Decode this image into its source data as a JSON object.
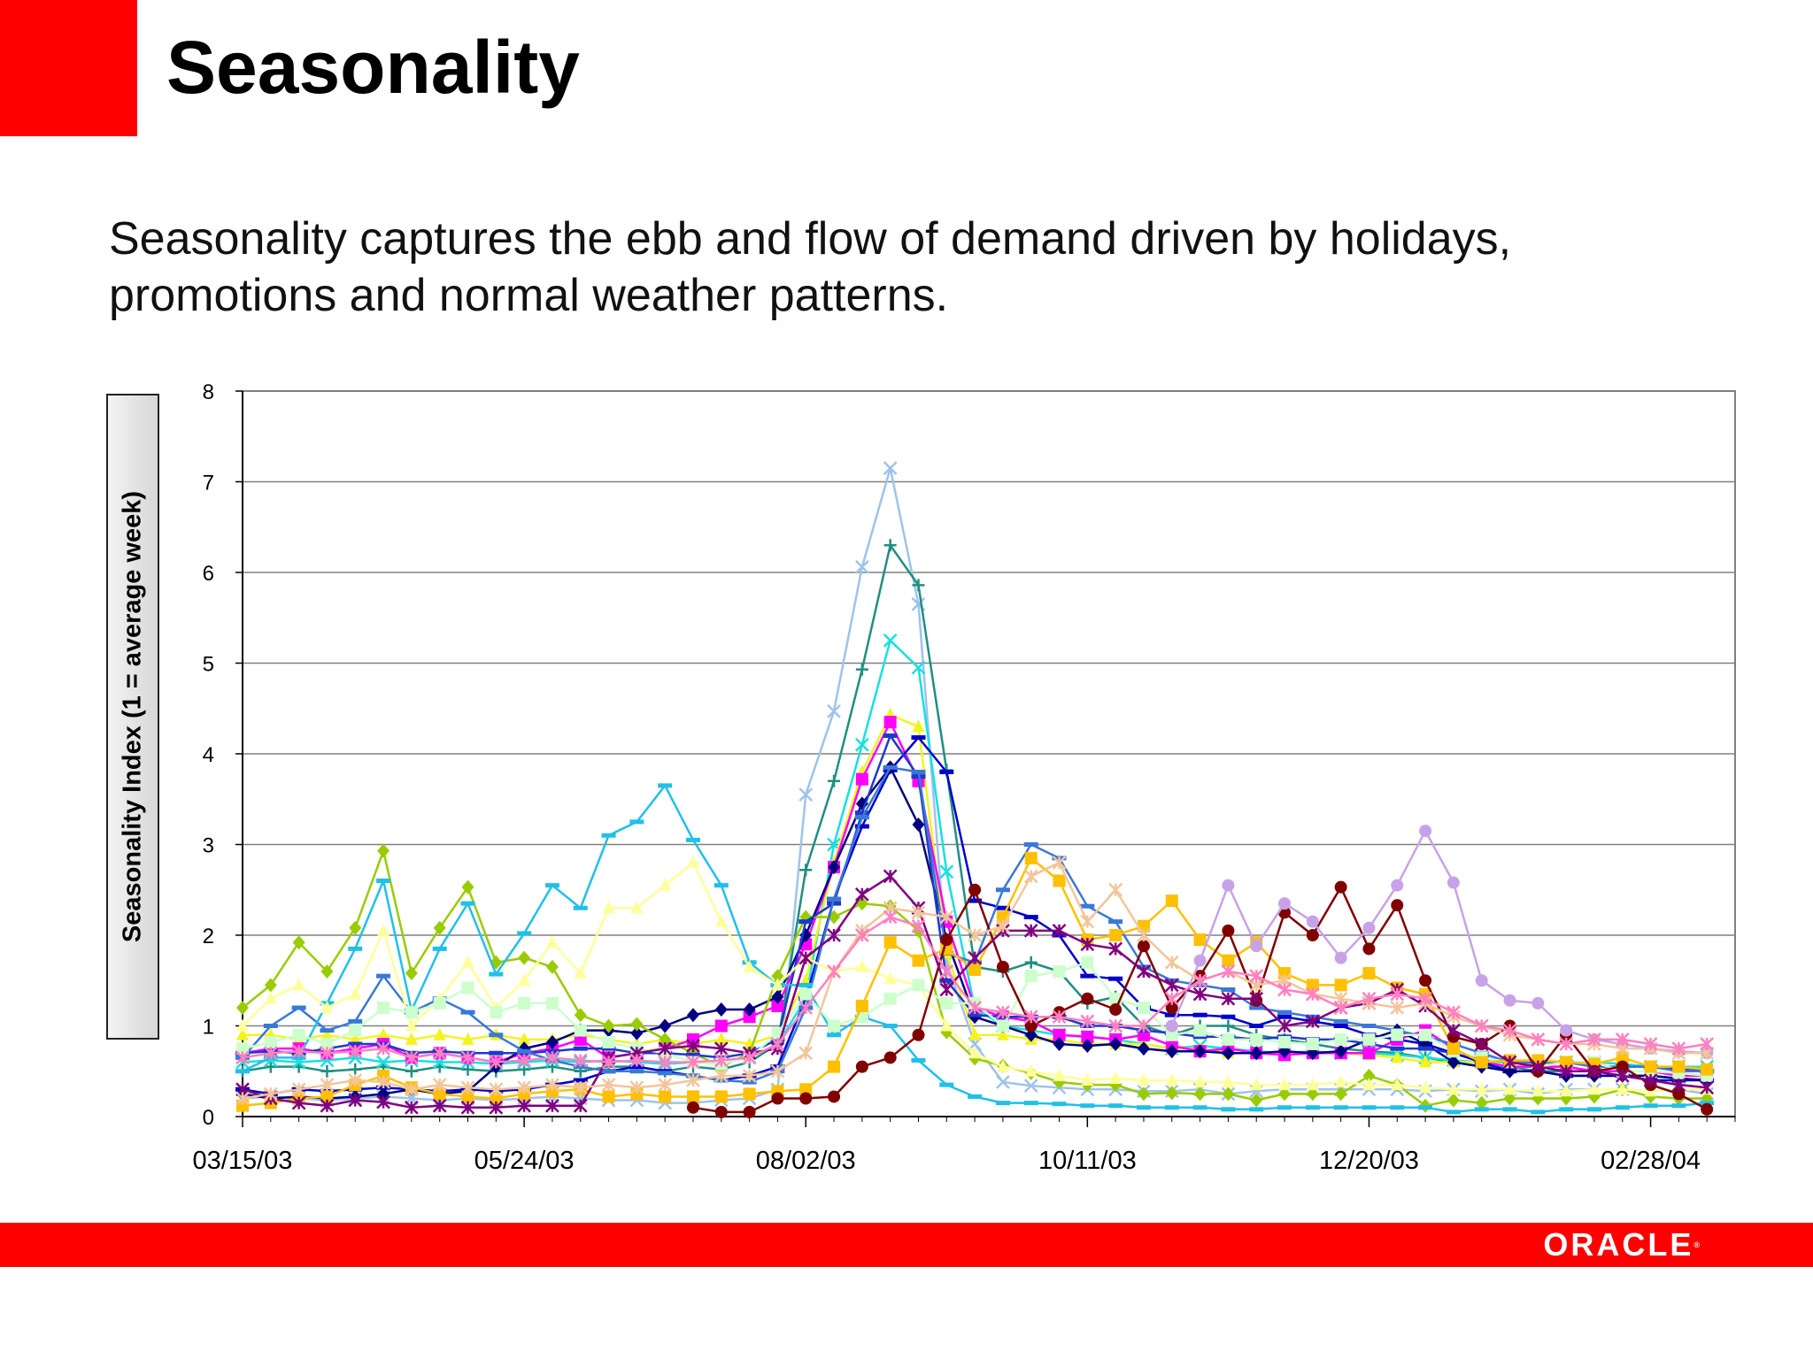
{
  "slide": {
    "title": "Seasonality",
    "subtitle": "Seasonality captures the ebb and flow of demand driven by holidays, promotions and normal weather patterns.",
    "logo_text": "ORACLE"
  },
  "colors": {
    "brand_red": "#ff0000"
  },
  "chart_data": {
    "type": "line",
    "title": "",
    "xlabel": "",
    "ylabel": "Seasonality Index (1 = average week)",
    "ylim": [
      0,
      8
    ],
    "yticks": [
      "0",
      "1",
      "2",
      "3",
      "4",
      "5",
      "6",
      "7",
      "8"
    ],
    "xlim": [
      0,
      53
    ],
    "xtick_labels": [
      "03/15/03",
      "05/24/03",
      "08/02/03",
      "10/11/03",
      "12/20/03",
      "02/28/04"
    ],
    "xtick_positions": [
      0,
      10,
      20,
      30,
      40,
      50
    ],
    "grid": "horizontal",
    "legend": "none",
    "series": [
      {
        "color": "#9fc3ea",
        "marker": "x",
        "values": [
          0.2,
          0.22,
          0.2,
          0.18,
          0.2,
          0.22,
          0.2,
          0.18,
          0.2,
          0.18,
          0.2,
          0.22,
          0.2,
          0.18,
          0.18,
          0.15,
          0.15,
          0.18,
          0.2,
          0.3,
          3.55,
          4.47,
          6.06,
          7.15,
          5.65,
          1.7,
          0.8,
          0.38,
          0.34,
          0.32,
          0.3,
          0.3,
          0.28,
          0.28,
          0.3,
          0.25,
          0.28,
          0.3,
          0.3,
          0.3,
          0.3,
          0.3,
          0.28,
          0.3,
          0.28,
          0.3,
          0.25,
          0.3,
          0.3,
          0.3,
          0.28,
          0.3,
          0.25
        ]
      },
      {
        "color": "#1f8f80",
        "marker": "plus",
        "values": [
          0.5,
          0.55,
          0.55,
          0.5,
          0.52,
          0.55,
          0.5,
          0.55,
          0.52,
          0.5,
          0.52,
          0.55,
          0.5,
          0.55,
          0.55,
          0.5,
          0.55,
          0.52,
          0.6,
          0.8,
          2.72,
          3.7,
          4.93,
          6.3,
          5.86,
          3.82,
          1.65,
          1.6,
          1.7,
          1.6,
          1.25,
          1.32,
          1.0,
          0.9,
          1.0,
          1.0,
          0.9,
          0.85,
          0.8,
          0.75,
          0.72,
          0.7,
          0.65,
          0.6,
          0.55,
          0.55,
          0.5,
          0.5,
          0.5,
          0.45,
          0.45,
          0.42,
          0.4
        ]
      },
      {
        "color": "#18e0e0",
        "marker": "x",
        "values": [
          0.6,
          0.62,
          0.6,
          0.62,
          0.65,
          0.6,
          0.62,
          0.6,
          0.6,
          0.58,
          0.6,
          0.62,
          0.6,
          0.62,
          0.6,
          0.58,
          0.6,
          0.62,
          0.65,
          0.8,
          1.3,
          3.0,
          4.1,
          5.25,
          4.95,
          2.7,
          1.2,
          1.0,
          0.95,
          0.9,
          0.88,
          0.85,
          0.8,
          0.75,
          0.78,
          0.75,
          0.72,
          0.7,
          0.72,
          0.7,
          0.7,
          0.68,
          0.65,
          0.62,
          0.6,
          0.6,
          0.58,
          0.6,
          0.6,
          0.58,
          0.55,
          0.55,
          0.55
        ]
      },
      {
        "color": "#f3f320",
        "marker": "triangle",
        "values": [
          0.9,
          0.9,
          0.85,
          0.9,
          0.85,
          0.9,
          0.85,
          0.9,
          0.85,
          0.9,
          0.85,
          0.85,
          0.9,
          0.85,
          0.8,
          0.85,
          0.8,
          0.85,
          0.8,
          0.9,
          1.5,
          2.8,
          3.8,
          4.43,
          4.3,
          1.8,
          0.9,
          0.9,
          0.85,
          0.85,
          0.8,
          0.8,
          0.8,
          0.75,
          0.75,
          0.7,
          0.7,
          0.7,
          0.7,
          0.7,
          0.68,
          0.65,
          0.6,
          0.6,
          0.6,
          0.55,
          0.55,
          0.55,
          0.5,
          0.5,
          0.5,
          0.45,
          0.45
        ]
      },
      {
        "color": "#ff00ff",
        "marker": "square",
        "values": [
          0.7,
          0.75,
          0.75,
          0.7,
          0.75,
          0.8,
          0.65,
          0.7,
          0.65,
          0.6,
          0.7,
          0.75,
          0.85,
          0.65,
          0.7,
          0.75,
          0.85,
          1.0,
          1.1,
          1.22,
          1.9,
          2.75,
          3.72,
          4.35,
          3.7,
          2.15,
          1.2,
          1.1,
          1.05,
          0.9,
          0.88,
          0.85,
          0.9,
          0.78,
          0.72,
          0.75,
          0.7,
          0.68,
          0.7,
          0.7,
          0.7,
          0.85,
          0.95,
          0.75,
          0.6,
          0.55,
          0.55,
          0.55,
          0.5,
          0.5,
          0.5,
          0.45,
          0.45
        ]
      },
      {
        "color": "#0000cc",
        "marker": "dash",
        "values": [
          0.3,
          0.25,
          0.3,
          0.28,
          0.3,
          0.32,
          0.3,
          0.28,
          0.3,
          0.28,
          0.3,
          0.35,
          0.4,
          0.5,
          0.55,
          0.5,
          0.45,
          0.4,
          0.45,
          0.55,
          1.3,
          2.4,
          3.2,
          3.82,
          4.18,
          3.8,
          2.38,
          2.3,
          2.2,
          2.0,
          1.55,
          1.52,
          1.2,
          1.12,
          1.12,
          1.1,
          1.0,
          1.1,
          1.05,
          1.0,
          0.9,
          0.85,
          0.8,
          0.7,
          0.6,
          0.5,
          0.5,
          0.45,
          0.45,
          0.45,
          0.4,
          0.4,
          0.4
        ]
      },
      {
        "color": "#000080",
        "marker": "diamond",
        "values": [
          0.25,
          0.2,
          0.22,
          0.2,
          0.22,
          0.25,
          0.3,
          0.25,
          0.28,
          0.55,
          0.75,
          0.82,
          0.95,
          0.95,
          0.92,
          1.0,
          1.12,
          1.18,
          1.18,
          1.32,
          2.0,
          2.75,
          3.45,
          3.85,
          3.22,
          1.95,
          1.1,
          1.0,
          0.9,
          0.8,
          0.78,
          0.8,
          0.75,
          0.72,
          0.72,
          0.7,
          0.7,
          0.72,
          0.7,
          0.72,
          0.85,
          0.95,
          0.8,
          0.6,
          0.55,
          0.5,
          0.5,
          0.45,
          0.45,
          0.45,
          0.45,
          0.42,
          0.4
        ]
      },
      {
        "color": "#99cc00",
        "marker": "diamond",
        "values": [
          1.2,
          1.45,
          1.92,
          1.6,
          2.08,
          2.93,
          1.58,
          2.08,
          2.53,
          1.7,
          1.75,
          1.65,
          1.12,
          1.0,
          1.02,
          0.85,
          0.7,
          0.55,
          0.7,
          1.55,
          2.2,
          2.2,
          2.35,
          2.32,
          2.05,
          0.93,
          0.64,
          0.56,
          0.48,
          0.38,
          0.35,
          0.35,
          0.25,
          0.26,
          0.25,
          0.25,
          0.18,
          0.25,
          0.25,
          0.25,
          0.45,
          0.35,
          0.12,
          0.18,
          0.15,
          0.2,
          0.2,
          0.2,
          0.22,
          0.3,
          0.22,
          0.2,
          0.2
        ]
      },
      {
        "color": "#1e3ac8",
        "marker": "dash",
        "values": [
          0.7,
          0.72,
          0.7,
          0.75,
          0.8,
          0.8,
          0.7,
          0.72,
          0.7,
          0.7,
          0.7,
          0.72,
          0.75,
          0.75,
          0.7,
          0.7,
          0.68,
          0.65,
          0.7,
          0.85,
          2.15,
          2.35,
          3.35,
          4.2,
          3.75,
          1.5,
          1.12,
          1.1,
          1.1,
          1.1,
          1.0,
          1.0,
          0.95,
          0.92,
          0.88,
          0.88,
          0.85,
          0.88,
          0.85,
          0.85,
          0.8,
          0.75,
          0.75,
          0.7,
          0.65,
          0.6,
          0.6,
          0.6,
          0.55,
          0.55,
          0.55,
          0.52,
          0.5
        ]
      },
      {
        "color": "#3a78d8",
        "marker": "dash",
        "values": [
          0.65,
          1.0,
          1.2,
          0.95,
          1.05,
          1.55,
          1.15,
          1.3,
          1.15,
          0.9,
          0.72,
          0.62,
          0.55,
          0.5,
          0.5,
          0.48,
          0.45,
          0.4,
          0.38,
          0.5,
          1.2,
          2.4,
          3.3,
          3.85,
          3.8,
          1.8,
          1.7,
          2.5,
          3.0,
          2.85,
          2.32,
          2.15,
          1.65,
          1.5,
          1.45,
          1.4,
          1.2,
          1.15,
          1.1,
          1.05,
          1.0,
          0.95,
          0.88,
          0.8,
          0.7,
          0.6,
          0.6,
          0.6,
          0.55,
          0.55,
          0.55,
          0.5,
          0.5
        ]
      },
      {
        "color": "#20c0e8",
        "marker": "dash",
        "values": [
          0.5,
          0.65,
          0.65,
          1.25,
          1.85,
          2.6,
          1.17,
          1.85,
          2.35,
          1.57,
          2.02,
          2.55,
          2.3,
          3.1,
          3.25,
          3.65,
          3.05,
          2.55,
          1.7,
          1.45,
          1.45,
          0.9,
          1.1,
          1.0,
          0.62,
          0.35,
          0.22,
          0.15,
          0.15,
          0.14,
          0.12,
          0.12,
          0.1,
          0.1,
          0.1,
          0.08,
          0.08,
          0.1,
          0.1,
          0.1,
          0.1,
          0.1,
          0.1,
          0.05,
          0.08,
          0.08,
          0.05,
          0.08,
          0.08,
          0.1,
          0.12,
          0.12,
          0.15
        ]
      },
      {
        "color": "#ffff99",
        "marker": "triangle",
        "values": [
          1.0,
          1.3,
          1.45,
          1.2,
          1.35,
          2.05,
          1.0,
          1.3,
          1.7,
          1.2,
          1.5,
          1.92,
          1.58,
          2.3,
          2.3,
          2.55,
          2.8,
          2.15,
          1.65,
          1.45,
          1.75,
          1.6,
          1.65,
          1.52,
          1.45,
          1.0,
          0.7,
          0.55,
          0.5,
          0.45,
          0.4,
          0.42,
          0.4,
          0.4,
          0.38,
          0.38,
          0.35,
          0.35,
          0.35,
          0.38,
          0.35,
          0.35,
          0.32,
          0.3,
          0.3,
          0.3,
          0.28,
          0.28,
          0.3,
          0.3,
          0.28,
          0.3,
          0.3
        ]
      },
      {
        "color": "#ccffcc",
        "marker": "square",
        "values": [
          0.75,
          0.82,
          0.9,
          0.8,
          0.95,
          1.2,
          1.15,
          1.25,
          1.42,
          1.15,
          1.25,
          1.25,
          0.95,
          0.82,
          0.75,
          0.7,
          0.6,
          0.58,
          0.65,
          0.92,
          1.35,
          1.0,
          1.1,
          1.3,
          1.45,
          1.25,
          1.25,
          1.0,
          1.55,
          1.6,
          1.7,
          1.3,
          1.2,
          0.9,
          0.95,
          0.85,
          0.85,
          0.82,
          0.8,
          0.85,
          0.85,
          0.9,
          0.9,
          0.72,
          0.65,
          0.6,
          0.55,
          0.6,
          0.6,
          0.5,
          0.5,
          0.48,
          0.45
        ]
      },
      {
        "color": "#ffc000",
        "marker": "square",
        "values": [
          0.12,
          0.15,
          0.2,
          0.22,
          0.35,
          0.45,
          0.32,
          0.25,
          0.22,
          0.2,
          0.25,
          0.28,
          0.3,
          0.22,
          0.25,
          0.22,
          0.22,
          0.22,
          0.25,
          0.28,
          0.3,
          0.55,
          1.22,
          1.92,
          1.72,
          1.85,
          1.62,
          2.2,
          2.85,
          2.6,
          1.95,
          2.0,
          2.1,
          2.38,
          1.95,
          1.72,
          1.92,
          1.58,
          1.45,
          1.45,
          1.58,
          1.42,
          1.35,
          0.75,
          0.6,
          0.62,
          0.62,
          0.6,
          0.58,
          0.65,
          0.55,
          0.55,
          0.52
        ]
      },
      {
        "color": "#800000",
        "marker": "circle",
        "values": [
          null,
          null,
          null,
          null,
          null,
          null,
          null,
          null,
          null,
          null,
          null,
          null,
          null,
          null,
          null,
          null,
          0.1,
          0.05,
          0.05,
          0.2,
          0.2,
          0.22,
          0.55,
          0.65,
          0.9,
          1.95,
          2.5,
          1.65,
          1.0,
          1.15,
          1.3,
          1.18,
          1.88,
          1.2,
          1.55,
          2.05,
          1.28,
          2.25,
          2.0,
          2.53,
          1.85,
          2.33,
          1.5,
          0.88,
          0.8,
          1.0,
          0.5,
          0.9,
          0.5,
          0.55,
          0.35,
          0.25,
          0.08
        ]
      },
      {
        "color": "#c8a2e8",
        "marker": "circle",
        "values": [
          null,
          null,
          null,
          null,
          null,
          null,
          null,
          null,
          null,
          null,
          null,
          null,
          null,
          null,
          null,
          null,
          null,
          null,
          null,
          null,
          null,
          null,
          null,
          null,
          null,
          null,
          null,
          null,
          null,
          null,
          null,
          null,
          null,
          1.0,
          1.72,
          2.55,
          1.88,
          2.35,
          2.15,
          1.75,
          2.08,
          2.55,
          3.15,
          2.58,
          1.5,
          1.28,
          1.25,
          0.95,
          0.85,
          0.8,
          0.75,
          0.72,
          0.7
        ]
      },
      {
        "color": "#800080",
        "marker": "star",
        "values": [
          0.3,
          0.2,
          0.15,
          0.12,
          0.18,
          0.16,
          0.1,
          0.12,
          0.1,
          0.1,
          0.12,
          0.12,
          0.12,
          0.65,
          0.7,
          0.75,
          0.78,
          0.75,
          0.7,
          0.75,
          1.75,
          2.0,
          2.45,
          2.65,
          2.3,
          1.4,
          1.75,
          2.05,
          2.05,
          2.05,
          1.9,
          1.85,
          1.6,
          1.45,
          1.35,
          1.3,
          1.3,
          1.0,
          1.05,
          1.2,
          1.25,
          1.4,
          1.22,
          0.95,
          0.8,
          0.6,
          0.55,
          0.5,
          0.5,
          0.45,
          0.4,
          0.35,
          0.32
        ]
      },
      {
        "color": "#f2c59a",
        "marker": "star",
        "values": [
          0.2,
          0.25,
          0.3,
          0.35,
          0.4,
          0.38,
          0.3,
          0.35,
          0.32,
          0.3,
          0.32,
          0.35,
          0.32,
          0.35,
          0.32,
          0.35,
          0.4,
          0.45,
          0.45,
          0.5,
          0.7,
          1.6,
          2.05,
          2.3,
          2.25,
          2.2,
          2.0,
          2.1,
          2.65,
          2.8,
          2.15,
          2.5,
          2.0,
          1.7,
          1.5,
          1.6,
          1.45,
          1.5,
          1.35,
          1.3,
          1.25,
          1.2,
          1.25,
          1.1,
          1.0,
          0.9,
          0.85,
          0.8,
          0.8,
          0.75,
          0.75,
          0.7,
          0.7
        ]
      },
      {
        "color": "#ff80c0",
        "marker": "star",
        "values": [
          0.65,
          0.7,
          0.72,
          0.7,
          0.72,
          0.75,
          0.65,
          0.7,
          0.65,
          0.6,
          0.62,
          0.65,
          0.62,
          0.6,
          0.62,
          0.6,
          0.6,
          0.62,
          0.65,
          0.8,
          1.2,
          1.6,
          2.0,
          2.2,
          2.1,
          1.6,
          1.2,
          1.15,
          1.1,
          1.1,
          1.05,
          1.0,
          1.0,
          1.3,
          1.5,
          1.6,
          1.55,
          1.4,
          1.35,
          1.2,
          1.3,
          1.35,
          1.3,
          1.15,
          1.0,
          0.95,
          0.85,
          0.8,
          0.85,
          0.85,
          0.8,
          0.75,
          0.8
        ]
      }
    ]
  }
}
